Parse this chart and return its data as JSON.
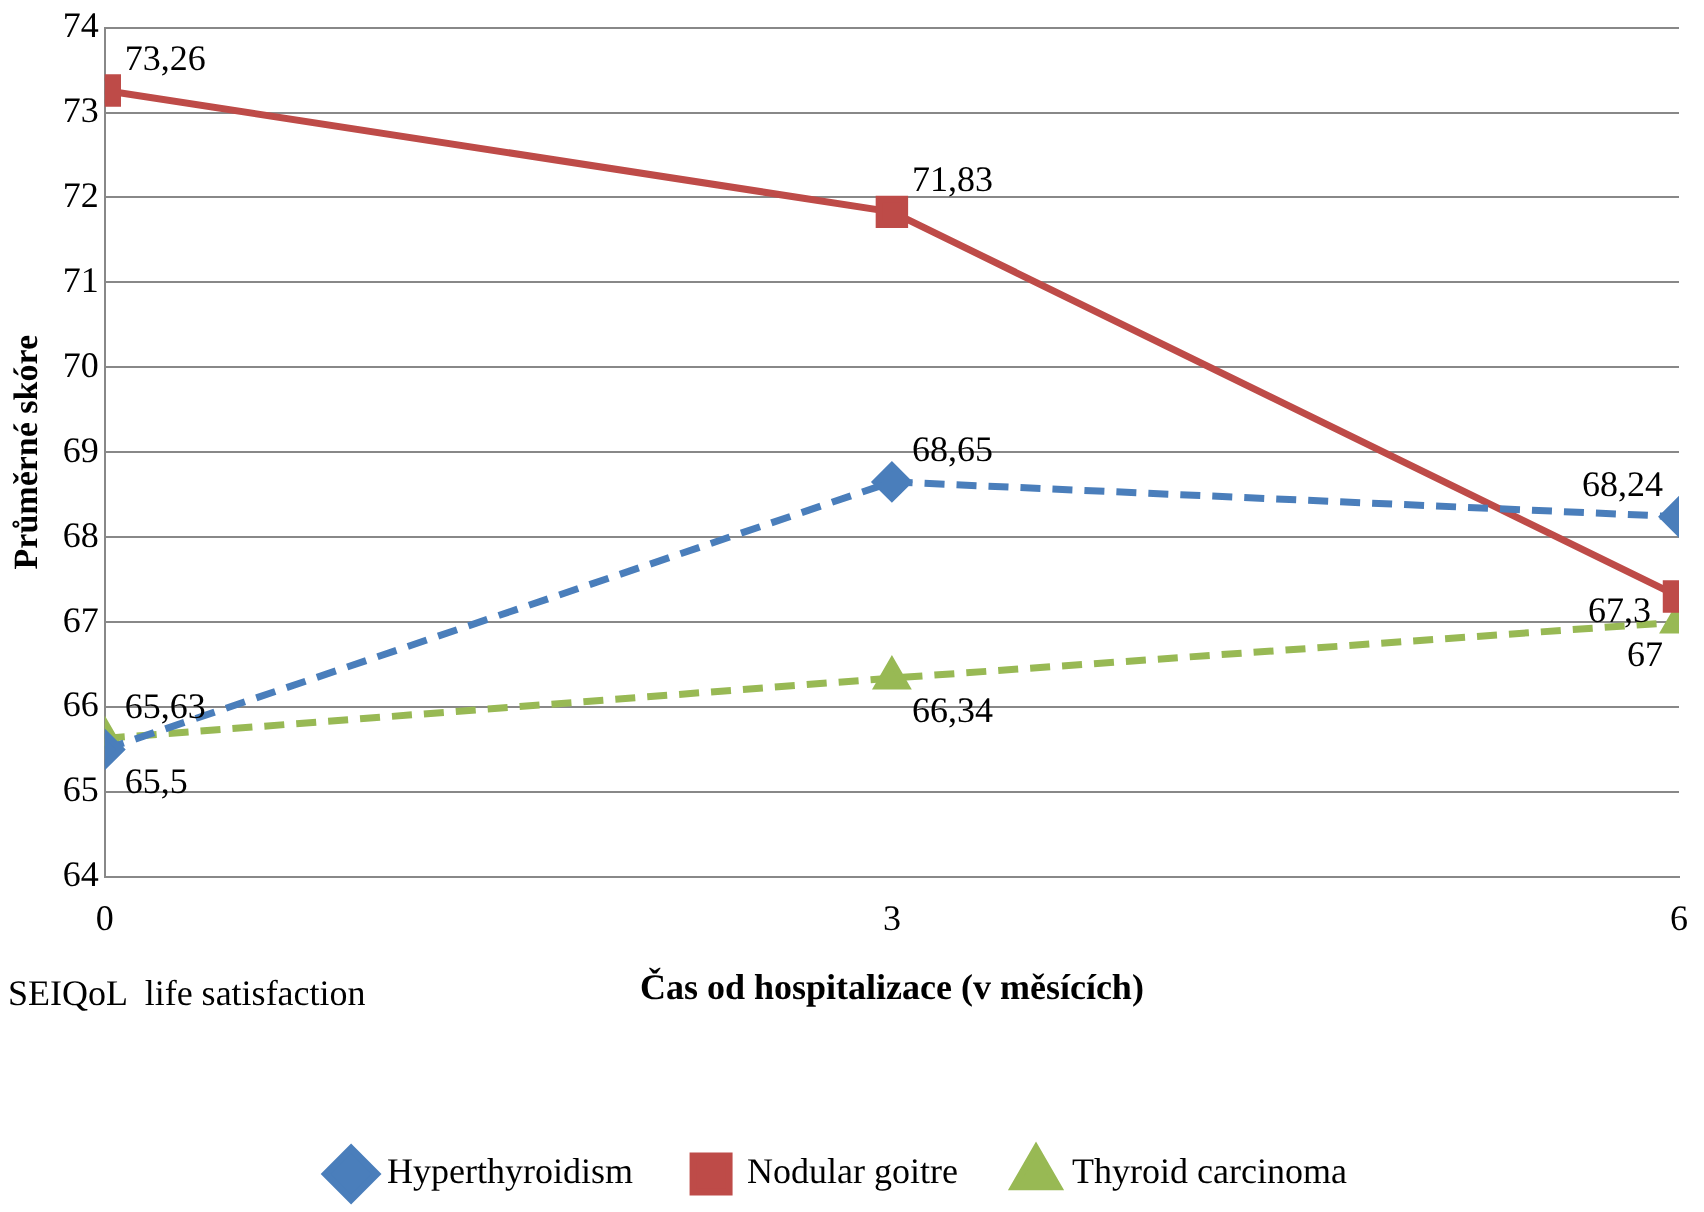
{
  "chart_data": {
    "type": "line",
    "xlabel": "Čas od hospitalizace (v měsících)",
    "ylabel": "Průměrné skóre",
    "annotations": [
      "SEIQoL  life satisfaction"
    ],
    "x": [
      0,
      3,
      6
    ],
    "xlim": [
      0,
      6
    ],
    "xticks": [
      0,
      3,
      6
    ],
    "ylim": [
      64,
      74
    ],
    "yticks": [
      64,
      65,
      66,
      67,
      68,
      69,
      70,
      71,
      72,
      73,
      74
    ],
    "grid": "y",
    "legend": "bottom",
    "series": [
      {
        "name": "Hyperthyroidism",
        "color": "#4a7ebb",
        "values": [
          65.5,
          68.65,
          68.24
        ],
        "value_labels": [
          "65,5",
          "68,65",
          "68,24"
        ],
        "marker": "diamond",
        "line_style": "dashed"
      },
      {
        "name": "Nodular goitre",
        "color": "#be4b48",
        "values": [
          73.26,
          71.83,
          67.3
        ],
        "value_labels": [
          "73,26",
          "71,83",
          "67,3"
        ],
        "marker": "square",
        "line_style": "solid"
      },
      {
        "name": "Thyroid carcinoma",
        "color": "#98b954",
        "values": [
          65.63,
          66.34,
          67
        ],
        "value_labels": [
          "65,63",
          "66,34",
          "67"
        ],
        "marker": "triangle",
        "line_style": "dashed"
      }
    ]
  }
}
